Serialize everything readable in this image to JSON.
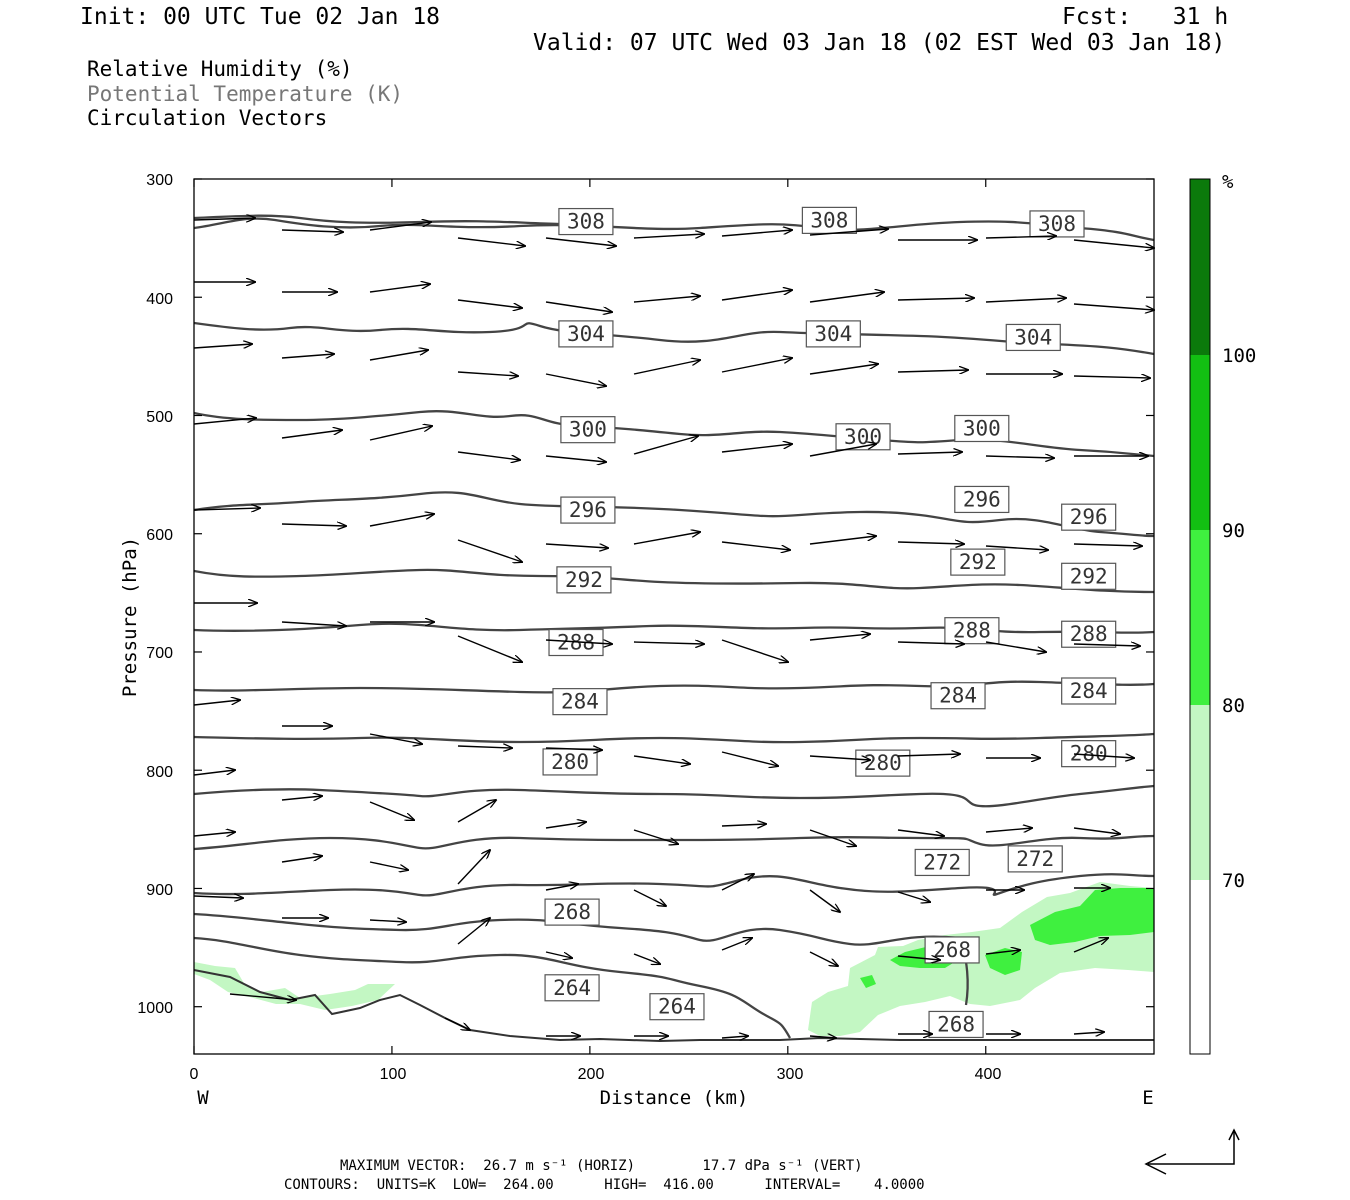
{
  "header": {
    "init": "Init: 00 UTC Tue 02 Jan 18",
    "fcst": "Fcst:   31 h",
    "valid": "Valid: 07 UTC Wed 03 Jan 18 (02 EST Wed 03 Jan 18)"
  },
  "legend": {
    "rh": "Relative Humidity (%)",
    "theta": "Potential Temperature (K)",
    "vectors": "Circulation Vectors"
  },
  "footer": {
    "line1": "MAXIMUM VECTOR:  26.7 m s⁻¹ (HORIZ)        17.7 dPa s⁻¹ (VERT)",
    "line2": "CONTOURS:  UNITS=K  LOW=  264.00      HIGH=  416.00      INTERVAL=    4.0000"
  },
  "colors": {
    "theta_line": "#444444",
    "rh_70": "#c3f7c3",
    "rh_80": "#3ff03f",
    "rh_90": "#12c012",
    "rh_100": "#0b7a0b"
  },
  "chart_data": {
    "type": "contour",
    "xlabel": "Distance (km)",
    "ylabel": "Pressure (hPa)",
    "x_left_label": "W",
    "x_right_label": "E",
    "xlim": [
      0,
      485
    ],
    "ylim": [
      1040,
      300
    ],
    "x_ticks": [
      0,
      100,
      200,
      300,
      400
    ],
    "y_ticks": [
      300,
      400,
      500,
      600,
      700,
      800,
      900,
      1000
    ],
    "colorbar": {
      "unit": "%",
      "levels": [
        70,
        80,
        90,
        100
      ]
    },
    "contour_labels": [
      {
        "value": "308",
        "x": 198,
        "p": 336
      },
      {
        "value": "308",
        "x": 321,
        "p": 335
      },
      {
        "value": "308",
        "x": 436,
        "p": 338
      },
      {
        "value": "304",
        "x": 198,
        "p": 431
      },
      {
        "value": "304",
        "x": 323,
        "p": 431
      },
      {
        "value": "304",
        "x": 424,
        "p": 434
      },
      {
        "value": "300",
        "x": 199,
        "p": 512
      },
      {
        "value": "300",
        "x": 338,
        "p": 518
      },
      {
        "value": "300",
        "x": 398,
        "p": 511
      },
      {
        "value": "296",
        "x": 199,
        "p": 580
      },
      {
        "value": "296",
        "x": 398,
        "p": 571
      },
      {
        "value": "296",
        "x": 452,
        "p": 586
      },
      {
        "value": "292",
        "x": 197,
        "p": 639
      },
      {
        "value": "292",
        "x": 396,
        "p": 624
      },
      {
        "value": "292",
        "x": 452,
        "p": 636
      },
      {
        "value": "288",
        "x": 193,
        "p": 692
      },
      {
        "value": "288",
        "x": 393,
        "p": 682
      },
      {
        "value": "288",
        "x": 452,
        "p": 685
      },
      {
        "value": "284",
        "x": 195,
        "p": 742
      },
      {
        "value": "284",
        "x": 386,
        "p": 737
      },
      {
        "value": "284",
        "x": 452,
        "p": 733
      },
      {
        "value": "280",
        "x": 190,
        "p": 793
      },
      {
        "value": "280",
        "x": 348,
        "p": 794
      },
      {
        "value": "280",
        "x": 452,
        "p": 786
      },
      {
        "value": "272",
        "x": 378,
        "p": 878
      },
      {
        "value": "272",
        "x": 425,
        "p": 875
      },
      {
        "value": "268",
        "x": 191,
        "p": 920
      },
      {
        "value": "268",
        "x": 383,
        "p": 952
      },
      {
        "value": "268",
        "x": 385,
        "p": 1015
      },
      {
        "value": "264",
        "x": 191,
        "p": 984
      },
      {
        "value": "264",
        "x": 244,
        "p": 1000
      }
    ]
  }
}
